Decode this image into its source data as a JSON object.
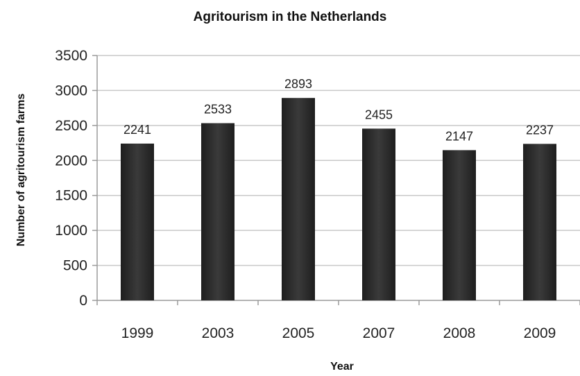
{
  "chart_data": {
    "type": "bar",
    "title": "Agritourism in the Netherlands",
    "xlabel": "Year",
    "ylabel": "Number of agritourism farms",
    "categories": [
      "1999",
      "2003",
      "2005",
      "2007",
      "2008",
      "2009"
    ],
    "values": [
      2241,
      2533,
      2893,
      2455,
      2147,
      2237
    ],
    "data_labels": [
      "2241",
      "2533",
      "2893",
      "2455",
      "2147",
      "2237"
    ],
    "ylim": [
      0,
      3500
    ],
    "yticks": [
      0,
      500,
      1000,
      1500,
      2000,
      2500,
      3000,
      3500
    ],
    "grid": true,
    "legend": "none",
    "colors": {
      "bar": "#1e1e1e",
      "bar_highlight": "#3a3a3a",
      "grid": "#c8c8c8",
      "axis": "#9a9a9a",
      "text": "#222222"
    }
  }
}
